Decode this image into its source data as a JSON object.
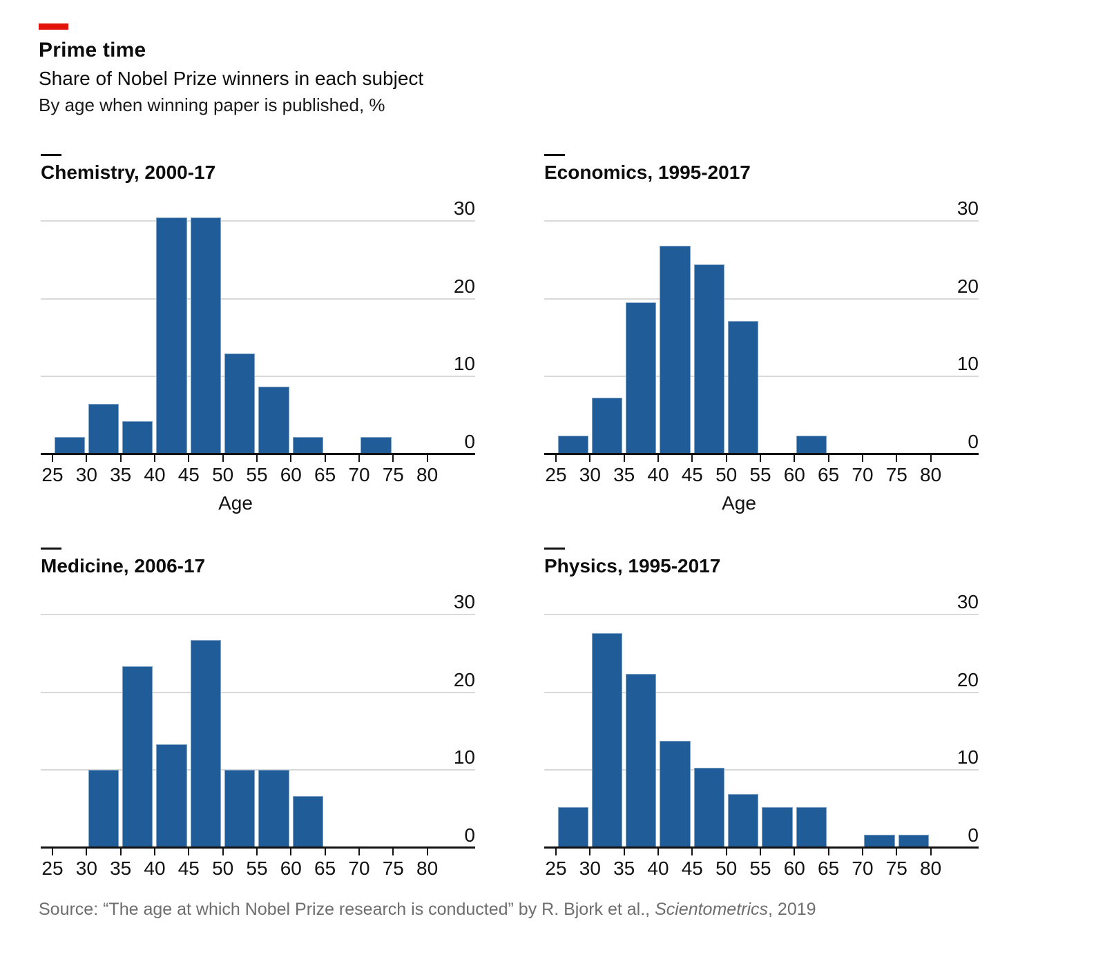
{
  "header": {
    "title": "Prime time",
    "subtitle": "Share of Nobel Prize winners in each subject",
    "note": "By age when winning paper is published, %"
  },
  "chart_data": [
    {
      "type": "bar",
      "title": "Chemistry, 2000-17",
      "xlabel": "Age",
      "ylabel": "",
      "categories": [
        "25-30",
        "30-35",
        "35-40",
        "40-45",
        "45-50",
        "50-55",
        "55-60",
        "60-65",
        "65-70",
        "70-75",
        "75-80"
      ],
      "values": [
        2.2,
        6.5,
        4.3,
        30.4,
        30.4,
        13,
        8.7,
        2.2,
        0,
        2.2,
        0
      ],
      "x_tick_labels": [
        "25",
        "30",
        "35",
        "40",
        "45",
        "50",
        "55",
        "60",
        "65",
        "70",
        "75",
        "80"
      ],
      "yticks": [
        0,
        10,
        20,
        30
      ],
      "ylim": [
        0,
        32.6
      ],
      "grid": true,
      "ytick_side": "right"
    },
    {
      "type": "bar",
      "title": "Economics, 1995-2017",
      "xlabel": "Age",
      "ylabel": "",
      "categories": [
        "25-30",
        "30-35",
        "35-40",
        "40-45",
        "45-50",
        "50-55",
        "55-60",
        "60-65",
        "65-70",
        "70-75",
        "75-80"
      ],
      "values": [
        2.4,
        7.3,
        19.5,
        26.8,
        24.4,
        17.1,
        0,
        2.4,
        0,
        0,
        0
      ],
      "x_tick_labels": [
        "25",
        "30",
        "35",
        "40",
        "45",
        "50",
        "55",
        "60",
        "65",
        "70",
        "75",
        "80"
      ],
      "yticks": [
        0,
        10,
        20,
        30
      ],
      "ylim": [
        0,
        32.6
      ],
      "grid": true,
      "ytick_side": "right"
    },
    {
      "type": "bar",
      "title": "Medicine, 2006-17",
      "xlabel": "",
      "ylabel": "",
      "categories": [
        "25-30",
        "30-35",
        "35-40",
        "40-45",
        "45-50",
        "50-55",
        "55-60",
        "60-65",
        "65-70",
        "70-75",
        "75-80"
      ],
      "values": [
        0,
        10,
        23.3,
        13.3,
        26.7,
        10,
        10,
        6.7,
        0,
        0,
        0
      ],
      "x_tick_labels": [
        "25",
        "30",
        "35",
        "40",
        "45",
        "50",
        "55",
        "60",
        "65",
        "70",
        "75",
        "80"
      ],
      "yticks": [
        0,
        10,
        20,
        30
      ],
      "ylim": [
        0,
        32.6
      ],
      "grid": true,
      "ytick_side": "right"
    },
    {
      "type": "bar",
      "title": "Physics, 1995-2017",
      "xlabel": "",
      "ylabel": "",
      "categories": [
        "25-30",
        "30-35",
        "35-40",
        "40-45",
        "45-50",
        "50-55",
        "55-60",
        "60-65",
        "65-70",
        "70-75",
        "75-80"
      ],
      "values": [
        5.2,
        27.6,
        22.4,
        13.8,
        10.3,
        6.9,
        5.2,
        5.2,
        0,
        1.7,
        1.7
      ],
      "x_tick_labels": [
        "25",
        "30",
        "35",
        "40",
        "45",
        "50",
        "55",
        "60",
        "65",
        "70",
        "75",
        "80"
      ],
      "yticks": [
        0,
        10,
        20,
        30
      ],
      "ylim": [
        0,
        32.6
      ],
      "grid": true,
      "ytick_side": "right"
    }
  ],
  "source": {
    "prefix": "Source: “The age at which Nobel Prize research is conducted” by R. Bjork et al., ",
    "journal_italic": "Scientometrics",
    "suffix": ", 2019"
  },
  "style": {
    "accent_color": "#e3120b",
    "bar_color": "#205c98",
    "grid_color": "#d9d9d9",
    "axis_color": "#121212",
    "text_color": "#0d0d0d",
    "source_color": "#6e6e6e"
  }
}
